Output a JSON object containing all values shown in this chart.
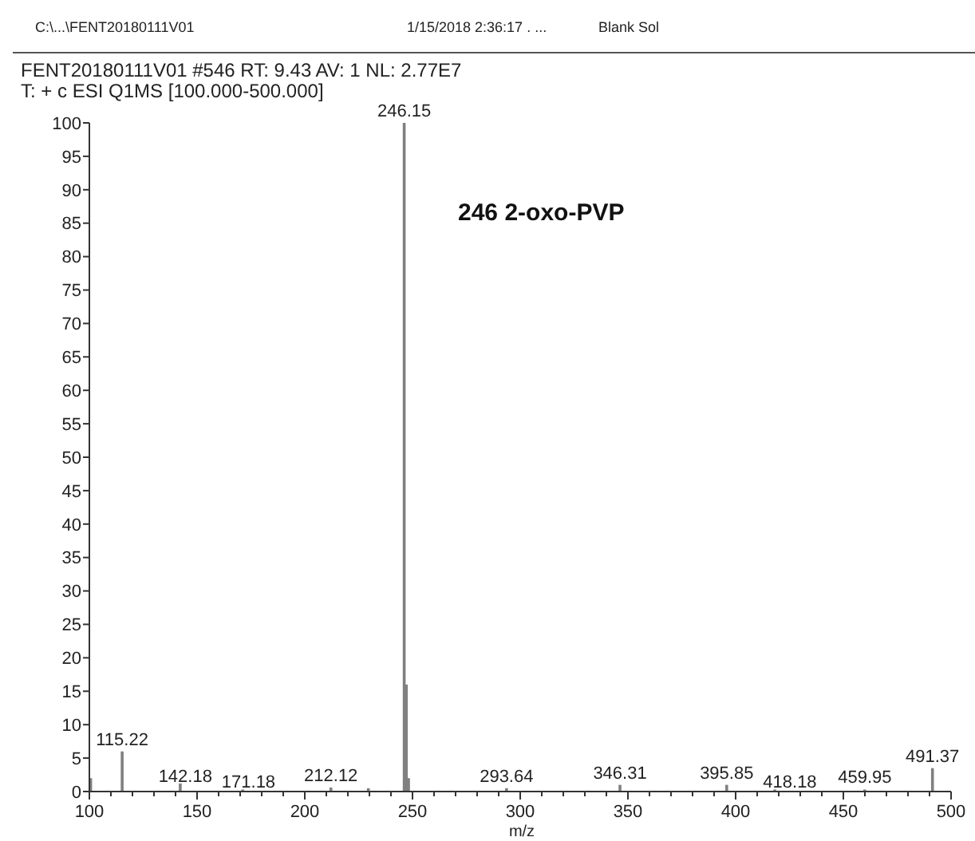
{
  "chart_data": {
    "type": "bar",
    "title": "FENT20180111V01 #546   RT: 9.43   AV: 1   NL: 2.77E7",
    "subtitle": "T: + c ESI Q1MS [100.000-500.000]",
    "xlabel": "m/z",
    "annotations": [
      "C:\\...\\FENT20180111V01",
      "1/15/2018 2:36:17 . ...",
      "Blank Sol",
      "246 2-oxo-PVP",
      {
        "text": "115.22",
        "x": 115.22,
        "y": 6
      },
      {
        "text": "142.18",
        "x": 142.18,
        "y": 1.2
      },
      {
        "text": "171.18",
        "x": 171.18,
        "y": 0.3
      },
      {
        "text": "212.12",
        "x": 212.12,
        "y": 0.6
      },
      {
        "text": "246.15",
        "x": 246.15,
        "y": 100
      },
      {
        "text": "293.64",
        "x": 293.64,
        "y": 0.5
      },
      {
        "text": "346.31",
        "x": 346.31,
        "y": 1
      },
      {
        "text": "395.85",
        "x": 395.85,
        "y": 1
      },
      {
        "text": "418.18",
        "x": 418.18,
        "y": 0.3
      },
      {
        "text": "459.95",
        "x": 459.95,
        "y": 0.3
      },
      {
        "text": "491.37",
        "x": 491.37,
        "y": 3.5
      }
    ],
    "x": [
      100.6,
      115.22,
      142.18,
      171.18,
      212.12,
      229.5,
      246.15,
      247.15,
      248.15,
      293.64,
      346.31,
      395.85,
      418.18,
      459.95,
      491.37
    ],
    "values": [
      2,
      6,
      1.2,
      0.3,
      0.6,
      0.5,
      100,
      16,
      2,
      0.5,
      1,
      1,
      0.3,
      0.3,
      3.5
    ],
    "color": "#808080",
    "xlim": [
      100,
      500
    ],
    "ylim": [
      0,
      100
    ],
    "xticks": [
      100,
      {
        "value": 110,
        "label": null
      },
      {
        "value": 120,
        "label": null
      },
      {
        "value": 130,
        "label": null
      },
      {
        "value": 140,
        "label": null
      },
      150,
      {
        "value": 160,
        "label": null
      },
      {
        "value": 170,
        "label": null
      },
      {
        "value": 180,
        "label": null
      },
      {
        "value": 190,
        "label": null
      },
      200,
      {
        "value": 210,
        "label": null
      },
      {
        "value": 220,
        "label": null
      },
      {
        "value": 230,
        "label": null
      },
      {
        "value": 240,
        "label": null
      },
      250,
      {
        "value": 260,
        "label": null
      },
      {
        "value": 270,
        "label": null
      },
      {
        "value": 280,
        "label": null
      },
      {
        "value": 290,
        "label": null
      },
      300,
      {
        "value": 310,
        "label": null
      },
      {
        "value": 320,
        "label": null
      },
      {
        "value": 330,
        "label": null
      },
      {
        "value": 340,
        "label": null
      },
      350,
      {
        "value": 360,
        "label": null
      },
      {
        "value": 370,
        "label": null
      },
      {
        "value": 380,
        "label": null
      },
      {
        "value": 390,
        "label": null
      },
      400,
      {
        "value": 410,
        "label": null
      },
      {
        "value": 420,
        "label": null
      },
      {
        "value": 430,
        "label": null
      },
      {
        "value": 440,
        "label": null
      },
      450,
      {
        "value": 460,
        "label": null
      },
      {
        "value": 470,
        "label": null
      },
      {
        "value": 480,
        "label": null
      },
      {
        "value": 490,
        "label": null
      },
      500
    ],
    "yticks": [
      0,
      5,
      10,
      15,
      20,
      25,
      30,
      35,
      40,
      45,
      50,
      55,
      60,
      65,
      70,
      75,
      80,
      85,
      90,
      95,
      100
    ],
    "grid": false
  }
}
